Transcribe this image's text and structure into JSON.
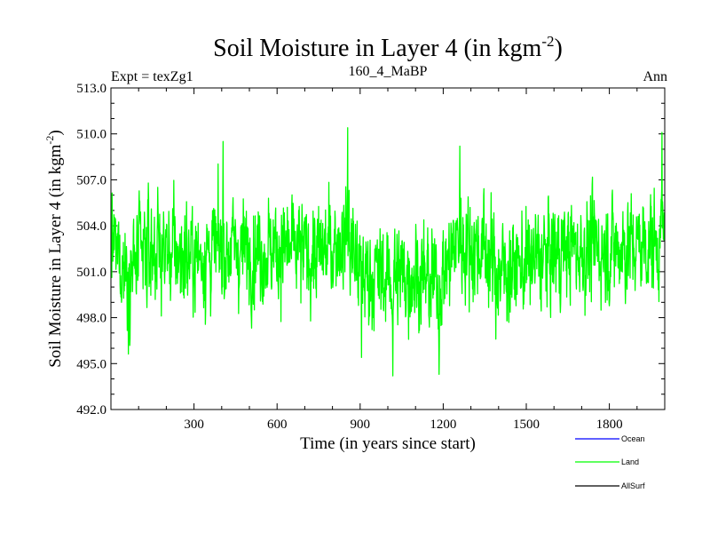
{
  "chart_data": {
    "type": "line",
    "title": "Soil Moisture in Layer 4 (in kgm",
    "title_sup": "-2",
    "title_close": ")",
    "subtitle_left": "Expt = texZg1",
    "subtitle_center": "160_4_MaBP",
    "subtitle_right": "Ann",
    "xlabel": "Time (in years since start)",
    "ylabel": "Soil Moisture in Layer 4 (in kgm",
    "ylabel_sup": "-2",
    "ylabel_close": ")",
    "xlim": [
      0,
      2000
    ],
    "ylim": [
      492.0,
      513.0
    ],
    "xticks": [
      300,
      600,
      900,
      1200,
      1500,
      1800
    ],
    "xtick_labels": [
      "300",
      "600",
      "900",
      "1200",
      "1500",
      "1800"
    ],
    "yticks": [
      492.0,
      495.0,
      498.0,
      501.0,
      504.0,
      507.0,
      510.0,
      513.0
    ],
    "ytick_labels": [
      "492.0",
      "495.0",
      "498.0",
      "501.0",
      "504.0",
      "507.0",
      "510.0",
      "513.0"
    ],
    "series": [
      {
        "name": "Ocean",
        "color": "#0000ff",
        "values": []
      },
      {
        "name": "Land",
        "color": "#00ff00",
        "mean": 502.5,
        "min": 494.2,
        "max": 510.4,
        "n_points": 2000
      },
      {
        "name": "AllSurf",
        "color": "#000000",
        "values": []
      }
    ],
    "land_anchor_points": [
      [
        0,
        503.0
      ],
      [
        60,
        501.0
      ],
      [
        150,
        502.5
      ],
      [
        300,
        502.0
      ],
      [
        450,
        502.5
      ],
      [
        600,
        502.5
      ],
      [
        750,
        502.0
      ],
      [
        850,
        503.5
      ],
      [
        900,
        501.0
      ],
      [
        1000,
        500.5
      ],
      [
        1100,
        501.0
      ],
      [
        1180,
        500.0
      ],
      [
        1250,
        503.0
      ],
      [
        1350,
        502.5
      ],
      [
        1400,
        501.0
      ],
      [
        1500,
        501.5
      ],
      [
        1650,
        502.5
      ],
      [
        1800,
        502.5
      ],
      [
        2000,
        503.0
      ]
    ],
    "land_extremes": [
      [
        855,
        510.4
      ],
      [
        405,
        509.5
      ],
      [
        1260,
        509.2
      ],
      [
        1990,
        510.1
      ],
      [
        1018,
        494.2
      ],
      [
        1185,
        494.3
      ],
      [
        905,
        495.4
      ],
      [
        1390,
        496.6
      ]
    ]
  }
}
